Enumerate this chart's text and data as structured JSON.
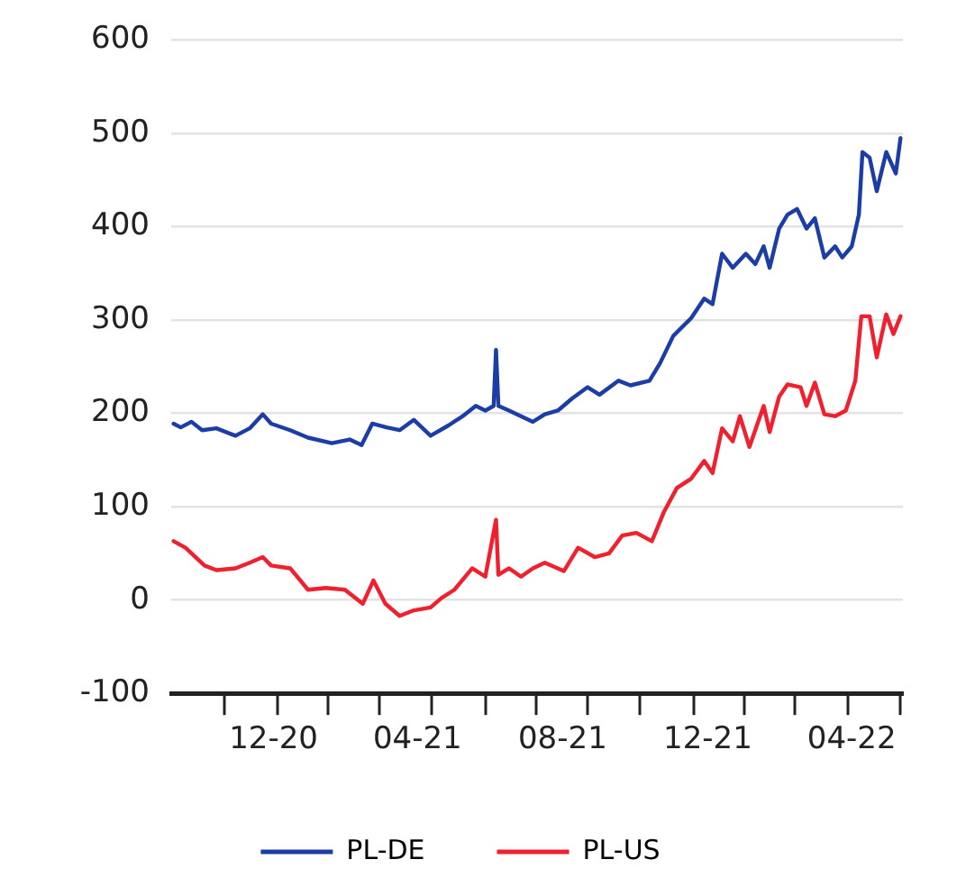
{
  "chart_data": {
    "type": "line",
    "legend": "bottom",
    "grid": "y",
    "marker": "none",
    "line_style": "solid",
    "xlim": [
      "2020-09-06",
      "2022-05-14"
    ],
    "xticks": [
      {
        "value": "2020-10-21",
        "label": null
      },
      {
        "value": "2020-12-01",
        "label": "12-20"
      },
      {
        "value": "2020-12-04",
        "label": null
      },
      {
        "value": "2021-01-16",
        "label": null
      },
      {
        "value": "2021-02-28",
        "label": null
      },
      {
        "value": "2021-04-01",
        "label": "04-21"
      },
      {
        "value": "2021-04-13",
        "label": null
      },
      {
        "value": "2021-05-28",
        "label": null
      },
      {
        "value": "2021-07-10",
        "label": null
      },
      {
        "value": "2021-08-01",
        "label": "08-21"
      },
      {
        "value": "2021-08-22",
        "label": null
      },
      {
        "value": "2021-10-05",
        "label": null
      },
      {
        "value": "2021-11-19",
        "label": null
      },
      {
        "value": "2021-12-01",
        "label": "12-21"
      },
      {
        "value": "2022-01-01",
        "label": null
      },
      {
        "value": "2022-02-12",
        "label": null
      },
      {
        "value": "2022-03-29",
        "label": null
      },
      {
        "value": "2022-04-01",
        "label": "04-22"
      },
      {
        "value": "2022-05-12",
        "label": null
      }
    ],
    "ylim": [
      -100,
      600
    ],
    "yticks": [
      -100,
      0,
      100,
      200,
      300,
      400,
      500,
      600
    ],
    "series": [
      {
        "name": "PL-DE",
        "color": "#1c3da6",
        "x": [
          "2020-09-08",
          "2020-09-14",
          "2020-09-23",
          "2020-10-02",
          "2020-10-14",
          "2020-10-30",
          "2020-11-11",
          "2020-11-22",
          "2020-11-29",
          "2020-12-15",
          "2020-12-30",
          "2021-01-19",
          "2021-02-03",
          "2021-02-13",
          "2021-02-22",
          "2021-03-06",
          "2021-03-17",
          "2021-03-29",
          "2021-04-12",
          "2021-04-27",
          "2021-05-09",
          "2021-05-20",
          "2021-05-28",
          "2021-06-04",
          "2021-06-06",
          "2021-06-08",
          "2021-06-17",
          "2021-07-07",
          "2021-07-17",
          "2021-07-28",
          "2021-08-09",
          "2021-08-22",
          "2021-09-01",
          "2021-09-17",
          "2021-09-27",
          "2021-10-13",
          "2021-10-22",
          "2021-11-02",
          "2021-11-17",
          "2021-11-28",
          "2021-12-05",
          "2021-12-13",
          "2021-12-22",
          "2022-01-02",
          "2022-01-10",
          "2022-01-17",
          "2022-01-22",
          "2022-01-30",
          "2022-02-06",
          "2022-02-14",
          "2022-02-22",
          "2022-03-01",
          "2022-03-09",
          "2022-03-18",
          "2022-03-24",
          "2022-04-01",
          "2022-04-07",
          "2022-04-10",
          "2022-04-16",
          "2022-04-22",
          "2022-04-30",
          "2022-05-08",
          "2022-05-12"
        ],
        "values": [
          189,
          185,
          191,
          182,
          184,
          176,
          184,
          199,
          189,
          182,
          174,
          168,
          172,
          166,
          189,
          185,
          182,
          193,
          176,
          187,
          197,
          208,
          203,
          208,
          268,
          208,
          203,
          191,
          199,
          203,
          216,
          228,
          220,
          235,
          230,
          235,
          254,
          283,
          302,
          323,
          317,
          371,
          356,
          371,
          360,
          379,
          356,
          398,
          413,
          419,
          398,
          409,
          367,
          379,
          367,
          379,
          413,
          480,
          474,
          438,
          480,
          457,
          495
        ]
      },
      {
        "name": "PL-US",
        "color": "#f0202e",
        "x": [
          "2020-09-08",
          "2020-09-18",
          "2020-10-04",
          "2020-10-14",
          "2020-10-30",
          "2020-11-11",
          "2020-11-22",
          "2020-11-29",
          "2020-12-15",
          "2020-12-30",
          "2021-01-14",
          "2021-01-30",
          "2021-02-14",
          "2021-02-23",
          "2021-03-05",
          "2021-03-17",
          "2021-03-29",
          "2021-04-12",
          "2021-04-21",
          "2021-05-02",
          "2021-05-17",
          "2021-05-28",
          "2021-06-06",
          "2021-06-08",
          "2021-06-17",
          "2021-06-27",
          "2021-07-07",
          "2021-07-17",
          "2021-08-02",
          "2021-08-14",
          "2021-08-28",
          "2021-09-09",
          "2021-09-20",
          "2021-10-02",
          "2021-10-15",
          "2021-10-25",
          "2021-11-05",
          "2021-11-17",
          "2021-11-28",
          "2021-12-05",
          "2021-12-13",
          "2021-12-22",
          "2021-12-28",
          "2022-01-05",
          "2022-01-17",
          "2022-01-22",
          "2022-01-30",
          "2022-02-06",
          "2022-02-17",
          "2022-02-22",
          "2022-03-01",
          "2022-03-09",
          "2022-03-18",
          "2022-03-27",
          "2022-04-04",
          "2022-04-09",
          "2022-04-16",
          "2022-04-22",
          "2022-04-30",
          "2022-05-06",
          "2022-05-12"
        ],
        "values": [
          63,
          56,
          37,
          32,
          34,
          40,
          46,
          37,
          34,
          11,
          13,
          11,
          -4,
          21,
          -4,
          -17,
          -11,
          -8,
          2,
          11,
          34,
          25,
          86,
          27,
          34,
          25,
          34,
          40,
          31,
          56,
          46,
          50,
          69,
          72,
          63,
          94,
          120,
          130,
          149,
          136,
          184,
          170,
          197,
          164,
          208,
          180,
          218,
          231,
          228,
          208,
          233,
          199,
          197,
          203,
          235,
          304,
          304,
          260,
          306,
          285,
          304
        ]
      }
    ]
  }
}
